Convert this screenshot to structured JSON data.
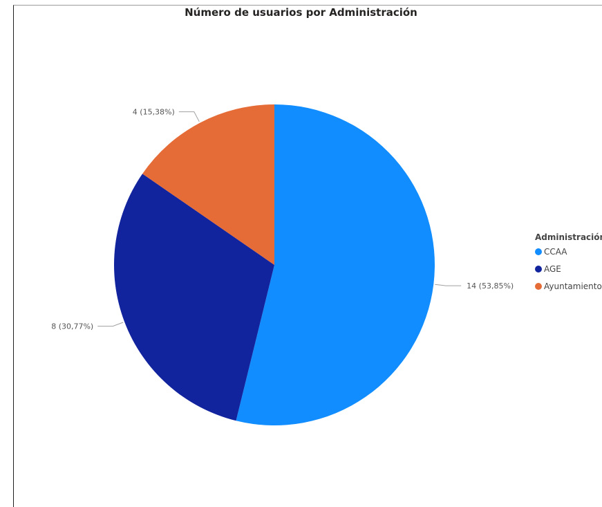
{
  "chart_data": {
    "type": "pie",
    "title": "Número de usuarios por Administración",
    "legend_title": "Administración",
    "legend_position": "right",
    "slices": [
      {
        "label": "CCAA",
        "value": 14,
        "percent": "53,85%",
        "color": "#118DFF",
        "data_label": "14 (53,85%)"
      },
      {
        "label": "AGE",
        "value": 8,
        "percent": "30,77%",
        "color": "#12239E",
        "data_label": "8 (30,77%)"
      },
      {
        "label": "Ayuntamiento",
        "value": 4,
        "percent": "15,38%",
        "color": "#E66C37",
        "data_label": "4 (15,38%)"
      }
    ]
  }
}
